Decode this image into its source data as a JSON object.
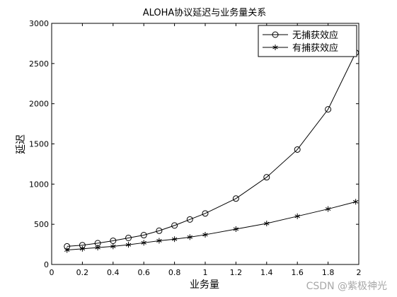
{
  "chart_data": {
    "type": "line",
    "title": "ALOHA协议延迟与业务量关系",
    "xlabel": "业务量",
    "ylabel": "延迟",
    "xlim": [
      0,
      2
    ],
    "ylim": [
      0,
      3000
    ],
    "xticks": [
      "0",
      "0.2",
      "0.4",
      "0.6",
      "0.8",
      "1",
      "1.2",
      "1.4",
      "1.6",
      "1.8",
      "2"
    ],
    "yticks": [
      "0",
      "500",
      "1000",
      "1500",
      "2000",
      "2500",
      "3000"
    ],
    "grid": false,
    "legend_position": "top-right",
    "x": [
      0.1,
      0.2,
      0.3,
      0.4,
      0.5,
      0.6,
      0.7,
      0.8,
      0.9,
      1.0,
      1.2,
      1.4,
      1.6,
      1.8,
      1.98
    ],
    "series": [
      {
        "name": "无捕获效应",
        "marker": "circle",
        "values": [
          225,
          240,
          265,
          295,
          330,
          365,
          420,
          485,
          560,
          635,
          820,
          1085,
          1430,
          1930,
          2635
        ]
      },
      {
        "name": "有捕获效应",
        "marker": "asterisk",
        "values": [
          180,
          195,
          210,
          225,
          245,
          270,
          295,
          315,
          340,
          370,
          440,
          510,
          600,
          690,
          780
        ]
      }
    ],
    "line_color": "#000000"
  },
  "watermark": "CSDN @紫极神光"
}
